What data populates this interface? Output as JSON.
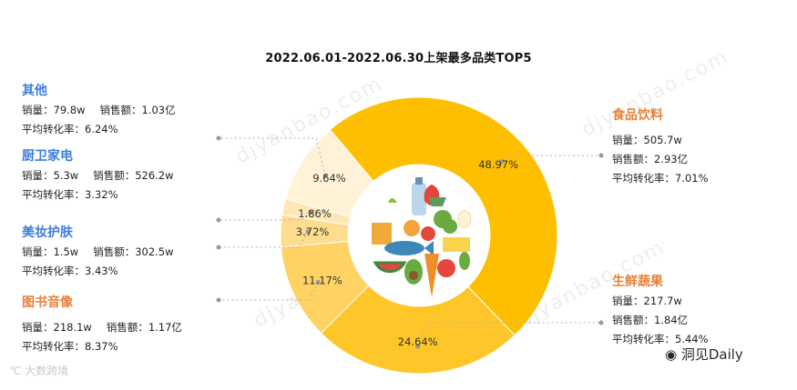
{
  "chart_data": {
    "type": "pie",
    "title": "2022.06.01-2022.06.30上架最多品类TOP5",
    "categories": [
      "食品饮料",
      "生鲜蔬果",
      "图书音像",
      "美妆护肤",
      "厨卫家电",
      "其他"
    ],
    "values": [
      48.97,
      24.64,
      11.17,
      3.72,
      1.86,
      9.64
    ],
    "value_labels": [
      "48.97%",
      "24.64%",
      "11.17%",
      "3.72%",
      "1.86%",
      "9.64%"
    ],
    "colors": [
      "#fdbf00",
      "#ffc629",
      "#ffd264",
      "#ffdd8e",
      "#ffe8b6",
      "#fff2d6"
    ],
    "donut": true
  },
  "panels": {
    "other": {
      "name": "其他",
      "sales": "销量：79.8w",
      "revenue": "销售额：1.03亿",
      "conversion": "平均转化率：6.24%"
    },
    "kitchen": {
      "name": "厨卫家电",
      "sales": "销量：5.3w",
      "revenue": "销售额：526.2w",
      "conversion": "平均转化率：3.32%"
    },
    "beauty": {
      "name": "美妆护肤",
      "sales": "销量：1.5w",
      "revenue": "销售额：302.5w",
      "conversion": "平均转化率：3.43%"
    },
    "books": {
      "name": "图书音像",
      "sales": "销量：218.1w",
      "revenue": "销售额：1.17亿",
      "conversion": "平均转化率：8.37%"
    },
    "food": {
      "name": "食品饮料",
      "sales": "销量：505.7w",
      "revenue": "销售额：2.93亿",
      "conversion": "平均转化率：7.01%"
    },
    "fresh": {
      "name": "生鲜蔬果",
      "sales": "销量：217.7w",
      "revenue": "销售额：1.84亿",
      "conversion": "平均转化率：5.44%"
    }
  },
  "watermark": "djyanbao.com",
  "brand_left": "大数跨境",
  "brand_right": "洞见Daily",
  "icon": "groceries-illustration"
}
